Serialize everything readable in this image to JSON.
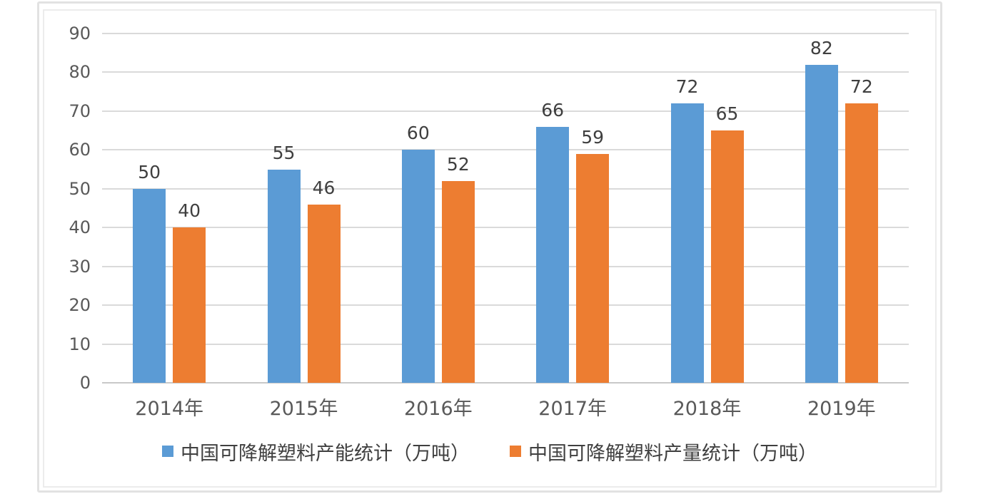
{
  "chart_data": {
    "type": "bar",
    "title": "",
    "xlabel": "",
    "ylabel": "",
    "categories": [
      "2014年",
      "2015年",
      "2016年",
      "2017年",
      "2018年",
      "2019年"
    ],
    "series": [
      {
        "name": "中国可降解塑料产能统计（万吨）",
        "color": "#5B9BD5",
        "values": [
          50,
          55,
          60,
          66,
          72,
          82
        ]
      },
      {
        "name": "中国可降解塑料产量统计（万吨）",
        "color": "#ED7D31",
        "values": [
          40,
          46,
          52,
          59,
          65,
          72
        ]
      }
    ],
    "ylim": [
      0,
      90
    ],
    "ytick_step": 10,
    "yticks": [
      0,
      10,
      20,
      30,
      40,
      50,
      60,
      70,
      80,
      90
    ],
    "grid": true,
    "data_labels": true,
    "legend_position": "bottom"
  },
  "colors": {
    "series_capacity": "#5B9BD5",
    "series_output": "#ED7D31",
    "gridline": "#dadada",
    "axis_baseline": "#c8c8c8",
    "tick_label_text": "#595959",
    "data_label_text": "#3f3f3f",
    "legend_text": "#404040",
    "frame_border": "#e2e2e2",
    "background": "#ffffff"
  }
}
